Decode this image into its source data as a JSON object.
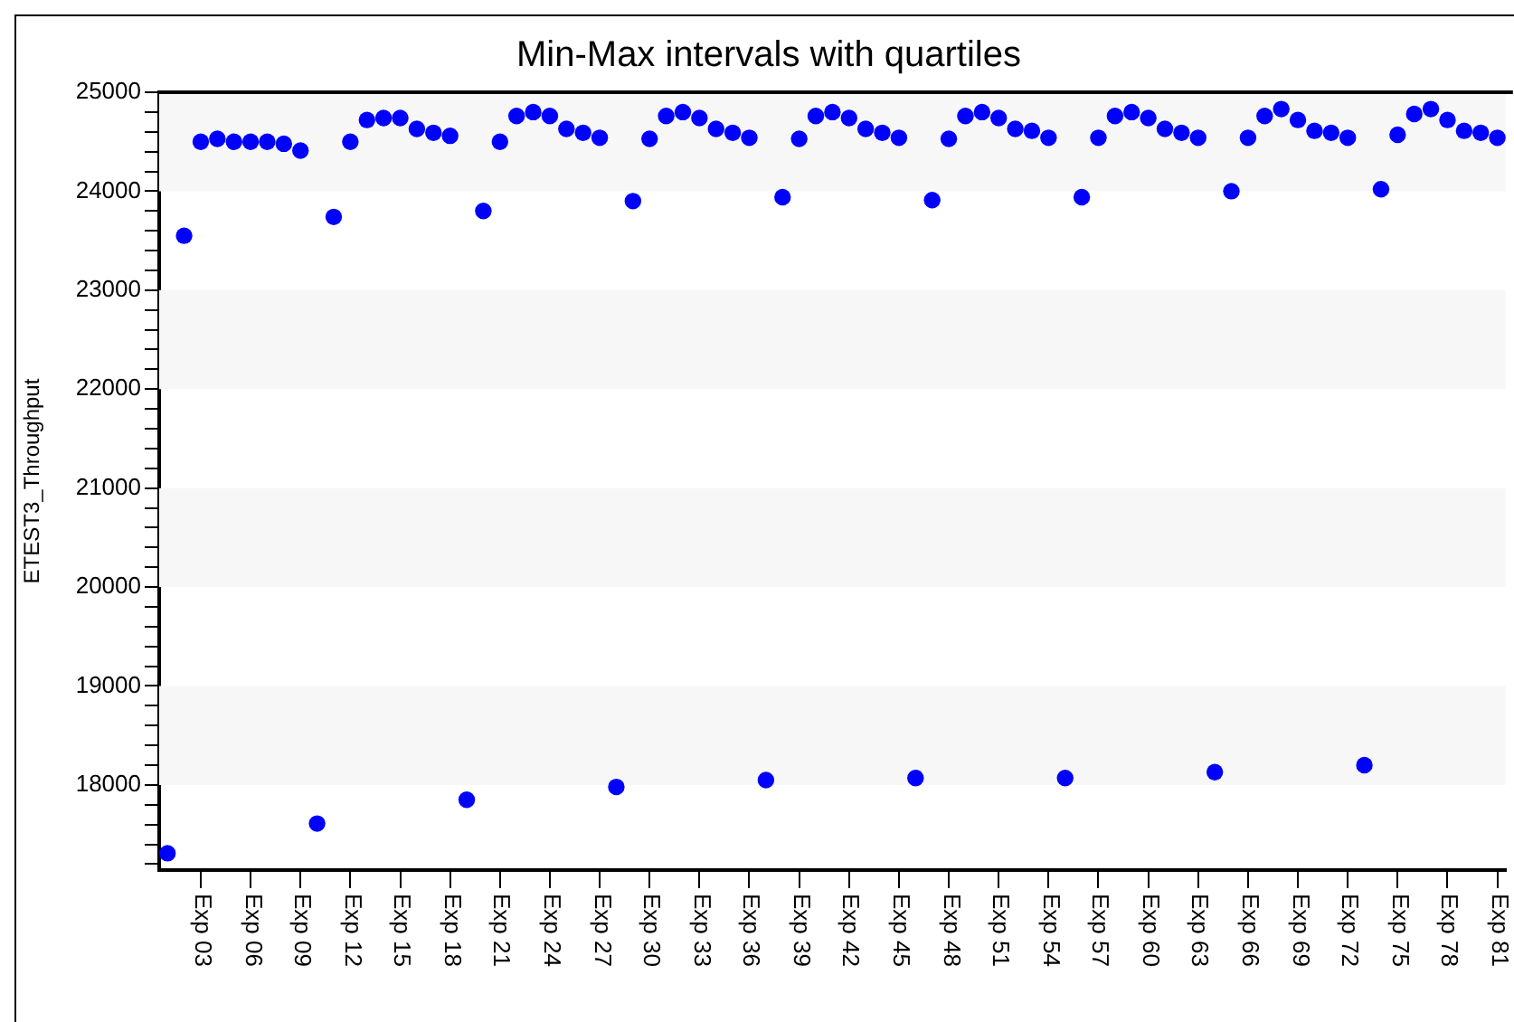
{
  "chart_data": {
    "type": "scatter",
    "title": "Min-Max intervals with quartiles",
    "ylabel": "ETEST3_Throughput",
    "categories": [
      null,
      null,
      "Exp 03",
      null,
      null,
      "Exp 06",
      null,
      null,
      "Exp 09",
      null,
      null,
      "Exp 12",
      null,
      null,
      "Exp 15",
      null,
      null,
      "Exp 18",
      null,
      null,
      "Exp 21",
      null,
      null,
      "Exp 24",
      null,
      null,
      "Exp 27",
      null,
      null,
      "Exp 30",
      null,
      null,
      "Exp 33",
      null,
      null,
      "Exp 36",
      null,
      null,
      "Exp 39",
      null,
      null,
      "Exp 42",
      null,
      null,
      "Exp 45",
      null,
      null,
      "Exp 48",
      null,
      null,
      "Exp 51",
      null,
      null,
      "Exp 54",
      null,
      null,
      "Exp 57",
      null,
      null,
      "Exp 60",
      null,
      null,
      "Exp 63",
      null,
      null,
      "Exp 66",
      null,
      null,
      "Exp 69",
      null,
      null,
      "Exp 72",
      null,
      null,
      "Exp 75",
      null,
      null,
      "Exp 78",
      null,
      null,
      "Exp 81"
    ],
    "values": [
      17310,
      23550,
      24500,
      24530,
      24500,
      24500,
      24500,
      24480,
      24410,
      17610,
      23740,
      24500,
      24720,
      24740,
      24740,
      24630,
      24590,
      24560,
      17850,
      23800,
      24500,
      24760,
      24800,
      24760,
      24630,
      24590,
      24540,
      17980,
      23900,
      24530,
      24760,
      24800,
      24740,
      24630,
      24590,
      24540,
      18050,
      23940,
      24530,
      24760,
      24800,
      24740,
      24630,
      24590,
      24540,
      18070,
      23910,
      24530,
      24760,
      24800,
      24740,
      24630,
      24610,
      24540,
      18070,
      23940,
      24540,
      24760,
      24800,
      24740,
      24630,
      24590,
      24540,
      18130,
      24000,
      24540,
      24760,
      24830,
      24720,
      24610,
      24590,
      24540,
      18200,
      24020,
      24570,
      24780,
      24830,
      24720,
      24610,
      24590,
      24540
    ],
    "color": "#0000ff",
    "marker": "circle",
    "ylim": [
      17140,
      25000
    ],
    "yticks": [
      {
        "value": 17200,
        "label": null
      },
      {
        "value": 17400,
        "label": null
      },
      {
        "value": 17600,
        "label": null
      },
      {
        "value": 17800,
        "label": null
      },
      18000,
      {
        "value": 18200,
        "label": null
      },
      {
        "value": 18400,
        "label": null
      },
      {
        "value": 18600,
        "label": null
      },
      {
        "value": 18800,
        "label": null
      },
      19000,
      {
        "value": 19200,
        "label": null
      },
      {
        "value": 19400,
        "label": null
      },
      {
        "value": 19600,
        "label": null
      },
      {
        "value": 19800,
        "label": null
      },
      20000,
      {
        "value": 20200,
        "label": null
      },
      {
        "value": 20400,
        "label": null
      },
      {
        "value": 20600,
        "label": null
      },
      {
        "value": 20800,
        "label": null
      },
      21000,
      {
        "value": 21200,
        "label": null
      },
      {
        "value": 21400,
        "label": null
      },
      {
        "value": 21600,
        "label": null
      },
      {
        "value": 21800,
        "label": null
      },
      22000,
      {
        "value": 22200,
        "label": null
      },
      {
        "value": 22400,
        "label": null
      },
      {
        "value": 22600,
        "label": null
      },
      {
        "value": 22800,
        "label": null
      },
      23000,
      {
        "value": 23200,
        "label": null
      },
      {
        "value": 23400,
        "label": null
      },
      {
        "value": 23600,
        "label": null
      },
      {
        "value": 23800,
        "label": null
      },
      24000,
      {
        "value": 24200,
        "label": null
      },
      {
        "value": 24400,
        "label": null
      },
      {
        "value": 24600,
        "label": null
      },
      {
        "value": 24800,
        "label": null
      },
      25000
    ],
    "bands": [
      {
        "axis": "y",
        "from": 18000,
        "to": 19000,
        "color": "#f7f7f7"
      },
      {
        "axis": "y",
        "from": 20000,
        "to": 21000,
        "color": "#f7f7f7"
      },
      {
        "axis": "y",
        "from": 22000,
        "to": 23000,
        "color": "#f7f7f7"
      },
      {
        "axis": "y",
        "from": 24000,
        "to": 25000,
        "color": "#f7f7f7"
      }
    ]
  }
}
